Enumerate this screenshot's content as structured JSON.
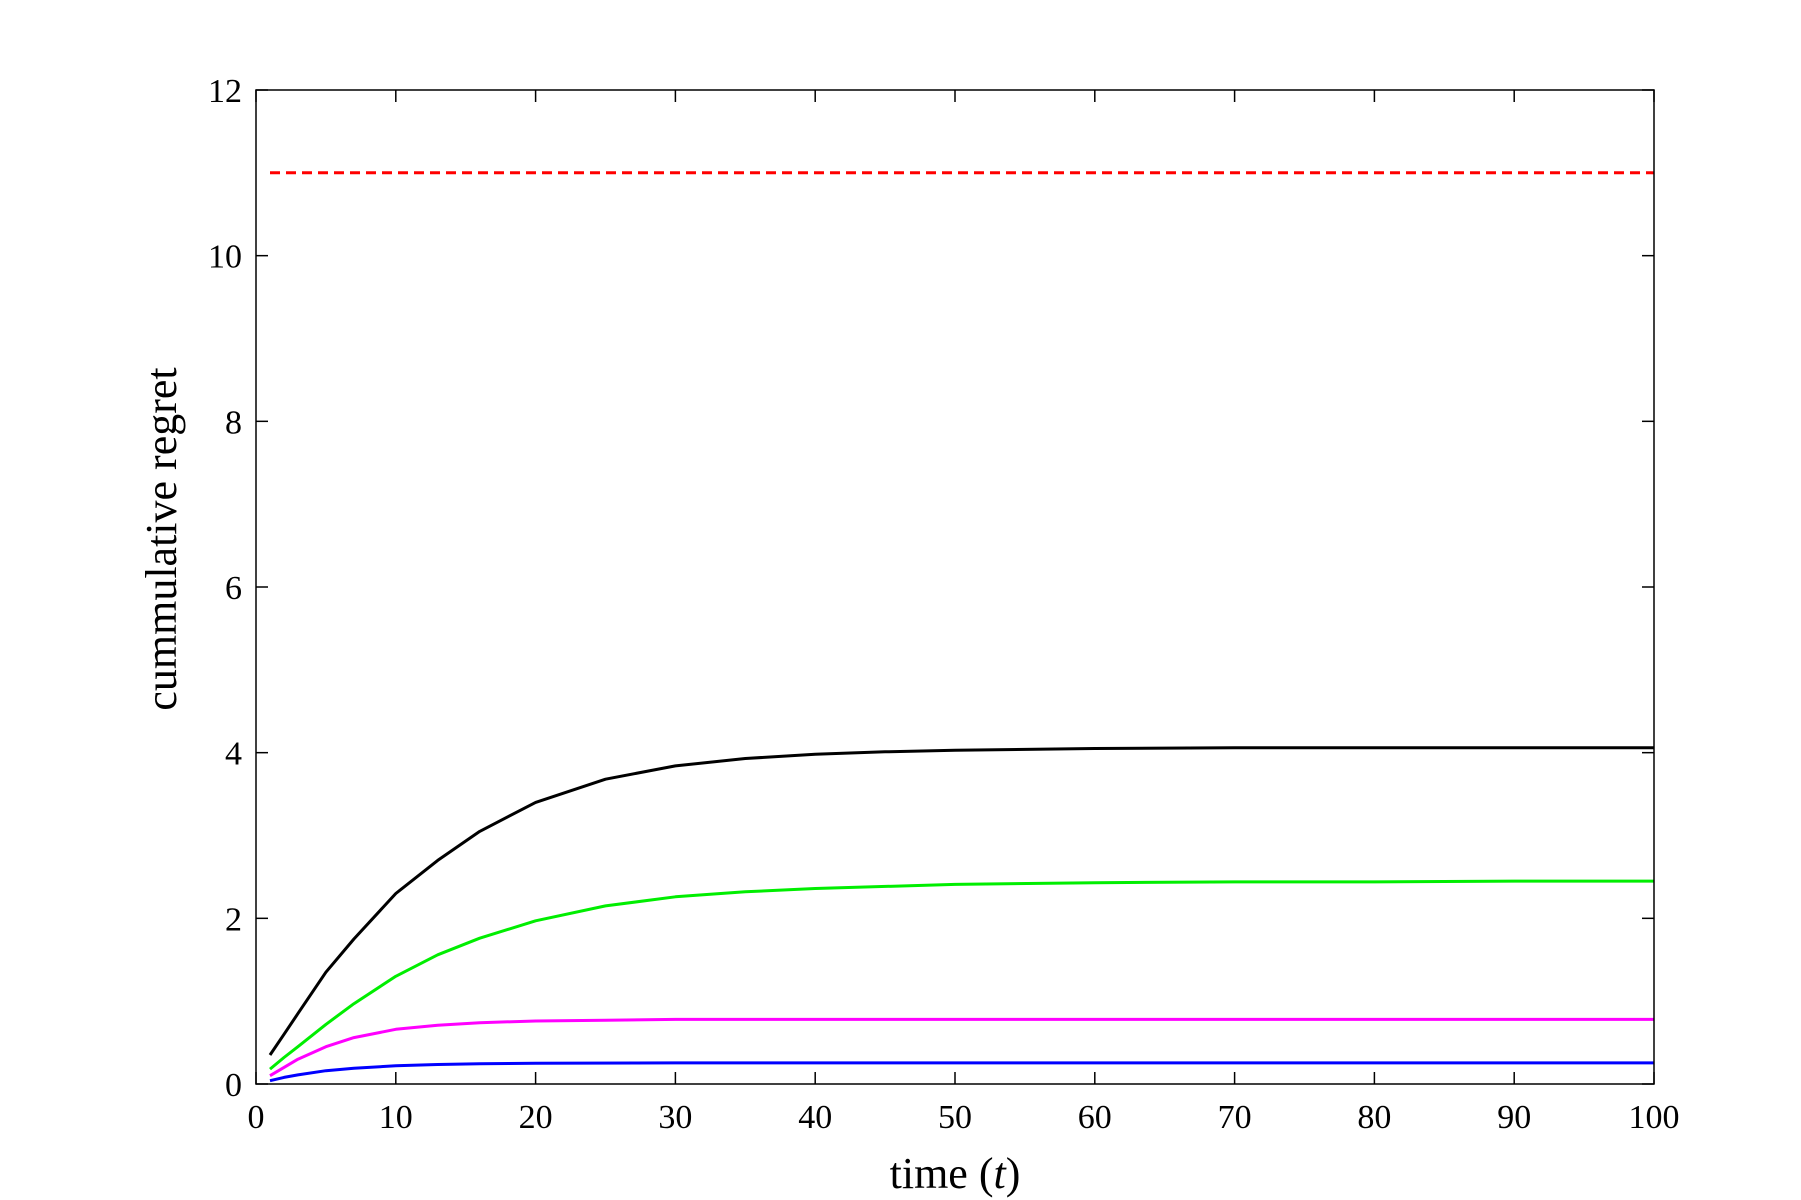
{
  "chart_data": {
    "type": "line",
    "xlabel": "time (",
    "xlabel_var": "t",
    "xlabel_close": ")",
    "ylabel": "cummulative regret",
    "xlim": [
      0,
      100
    ],
    "ylim": [
      0,
      12
    ],
    "xticks": [
      0,
      10,
      20,
      30,
      40,
      50,
      60,
      70,
      80,
      90,
      100
    ],
    "yticks": [
      0,
      2,
      4,
      6,
      8,
      10,
      12
    ],
    "grid": false,
    "series": [
      {
        "color": "#ff0000",
        "dashed": true,
        "x": [
          1,
          100
        ],
        "y": [
          11.0,
          11.0
        ]
      },
      {
        "color": "#000000",
        "dashed": false,
        "x": [
          1,
          2,
          3,
          5,
          7,
          10,
          13,
          16,
          20,
          25,
          30,
          35,
          40,
          45,
          50,
          60,
          70,
          80,
          90,
          100
        ],
        "y": [
          0.35,
          0.6,
          0.85,
          1.35,
          1.75,
          2.3,
          2.7,
          3.05,
          3.4,
          3.68,
          3.84,
          3.93,
          3.98,
          4.01,
          4.03,
          4.05,
          4.06,
          4.06,
          4.06,
          4.06
        ]
      },
      {
        "color": "#00ee00",
        "dashed": false,
        "x": [
          1,
          2,
          3,
          5,
          7,
          10,
          13,
          16,
          20,
          25,
          30,
          35,
          40,
          50,
          60,
          70,
          80,
          90,
          100
        ],
        "y": [
          0.18,
          0.32,
          0.45,
          0.72,
          0.97,
          1.3,
          1.56,
          1.76,
          1.97,
          2.15,
          2.26,
          2.32,
          2.36,
          2.41,
          2.43,
          2.44,
          2.44,
          2.45,
          2.45
        ]
      },
      {
        "color": "#ff00ff",
        "dashed": false,
        "x": [
          1,
          2,
          3,
          5,
          7,
          10,
          13,
          16,
          20,
          25,
          30,
          40,
          50,
          60,
          70,
          80,
          90,
          100
        ],
        "y": [
          0.1,
          0.2,
          0.3,
          0.45,
          0.56,
          0.66,
          0.71,
          0.74,
          0.76,
          0.77,
          0.78,
          0.78,
          0.78,
          0.78,
          0.78,
          0.78,
          0.78,
          0.78
        ]
      },
      {
        "color": "#0000ff",
        "dashed": false,
        "x": [
          1,
          2,
          3,
          5,
          7,
          10,
          13,
          16,
          20,
          30,
          40,
          50,
          60,
          70,
          80,
          90,
          100
        ],
        "y": [
          0.04,
          0.08,
          0.11,
          0.16,
          0.19,
          0.22,
          0.235,
          0.245,
          0.25,
          0.255,
          0.255,
          0.255,
          0.255,
          0.255,
          0.255,
          0.255,
          0.255
        ]
      }
    ]
  }
}
